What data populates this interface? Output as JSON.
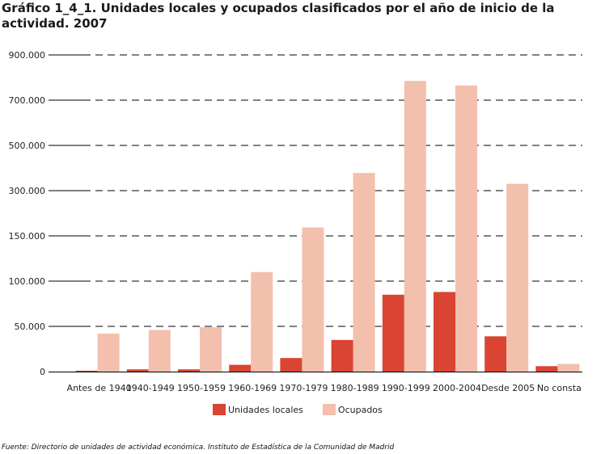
{
  "title": "Gráfico 1_4_1. Unidades locales y ocupados clasificados por el año de inicio de la actividad. 2007",
  "source_label": "Fuente:",
  "source_text": "Directorio de unidades de actividad económica. Instituto de Estadística de la Comunidad de Madrid",
  "colors": {
    "unidades_locales": "#d94433",
    "ocupados": "#f2c0ac",
    "gridline": "#000000"
  },
  "chart_data": {
    "type": "bar",
    "title": "Gráfico 1_4_1. Unidades locales y ocupados clasificados por el año de inicio de la actividad. 2007",
    "xlabel": "",
    "ylabel": "",
    "grid": true,
    "legend_position": "bottom",
    "y_scale": "piecewise",
    "y_ticks": [
      0,
      50000,
      100000,
      150000,
      300000,
      500000,
      700000,
      900000
    ],
    "y_tick_labels": [
      "0",
      "50.000",
      "100.000",
      "150.000",
      "300.000",
      "500.000",
      "700.000",
      "900.000"
    ],
    "categories": [
      "Antes de 1940",
      "1940-1949",
      "1950-1959",
      "1960-1969",
      "1970-1979",
      "1980-1989",
      "1990-1999",
      "2000-2004",
      "Desde 2005",
      "No consta"
    ],
    "series": [
      {
        "name": "Unidades locales",
        "color": "#d94433",
        "values": [
          1000,
          2500,
          2500,
          7500,
          15000,
          35000,
          85000,
          88000,
          39000,
          6000
        ]
      },
      {
        "name": "Ocupados",
        "color": "#f2c0ac",
        "values": [
          42000,
          46000,
          49000,
          110000,
          178000,
          378000,
          785000,
          765000,
          330000,
          8500
        ]
      }
    ]
  }
}
